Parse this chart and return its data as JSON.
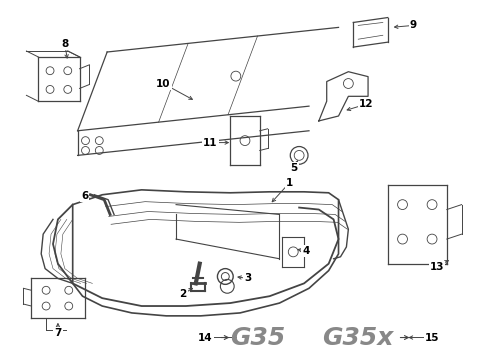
{
  "bg_color": "#ffffff",
  "line_color": "#444444",
  "label_color": "#000000",
  "label_fs": 7,
  "g35_color": "#888888"
}
